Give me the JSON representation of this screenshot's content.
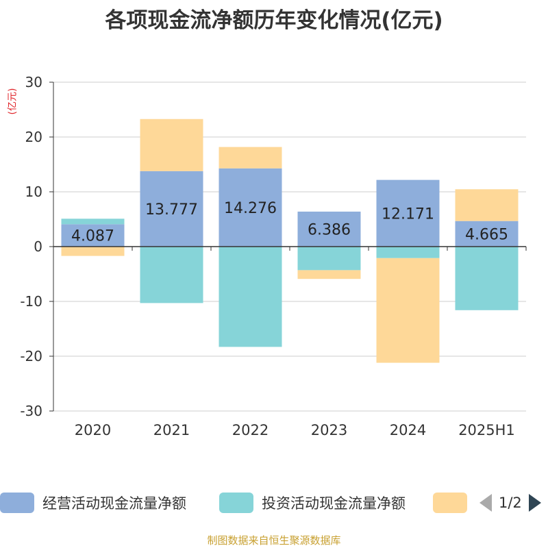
{
  "title": "各项现金流净额历年变化情况(亿元)",
  "y_unit": "(亿元)",
  "source": "制图数据来自恒生聚源数据库",
  "legend": {
    "items": [
      {
        "label": "经营活动现金流量净额",
        "color": "#8eaedb"
      },
      {
        "label": "投资活动现金流量净额",
        "color": "#86d4d8"
      },
      {
        "label": "",
        "color": "#fed898"
      }
    ],
    "page": "1/2"
  },
  "chart_data": {
    "type": "bar",
    "stacked": true,
    "categories": [
      "2020",
      "2021",
      "2022",
      "2023",
      "2024",
      "2025H1"
    ],
    "ylim": [
      -30,
      30
    ],
    "yticks": [
      30,
      20,
      10,
      0,
      -10,
      -20,
      -30
    ],
    "grid": true,
    "series": [
      {
        "name": "经营活动现金流量净额",
        "color": "#8eaedb",
        "values": [
          4.087,
          13.777,
          14.276,
          6.386,
          12.171,
          4.665
        ],
        "labels": [
          "4.087",
          "13.777",
          "14.276",
          "6.386",
          "12.171",
          "4.665"
        ]
      },
      {
        "name": "投资活动现金流量净额",
        "color": "#86d4d8",
        "values": [
          1.0,
          -10.3,
          -18.3,
          -4.3,
          -2.1,
          -11.6
        ]
      },
      {
        "color": "#fed898",
        "values": [
          -1.7,
          9.5,
          3.9,
          -1.6,
          -19.1,
          5.8
        ]
      }
    ]
  }
}
